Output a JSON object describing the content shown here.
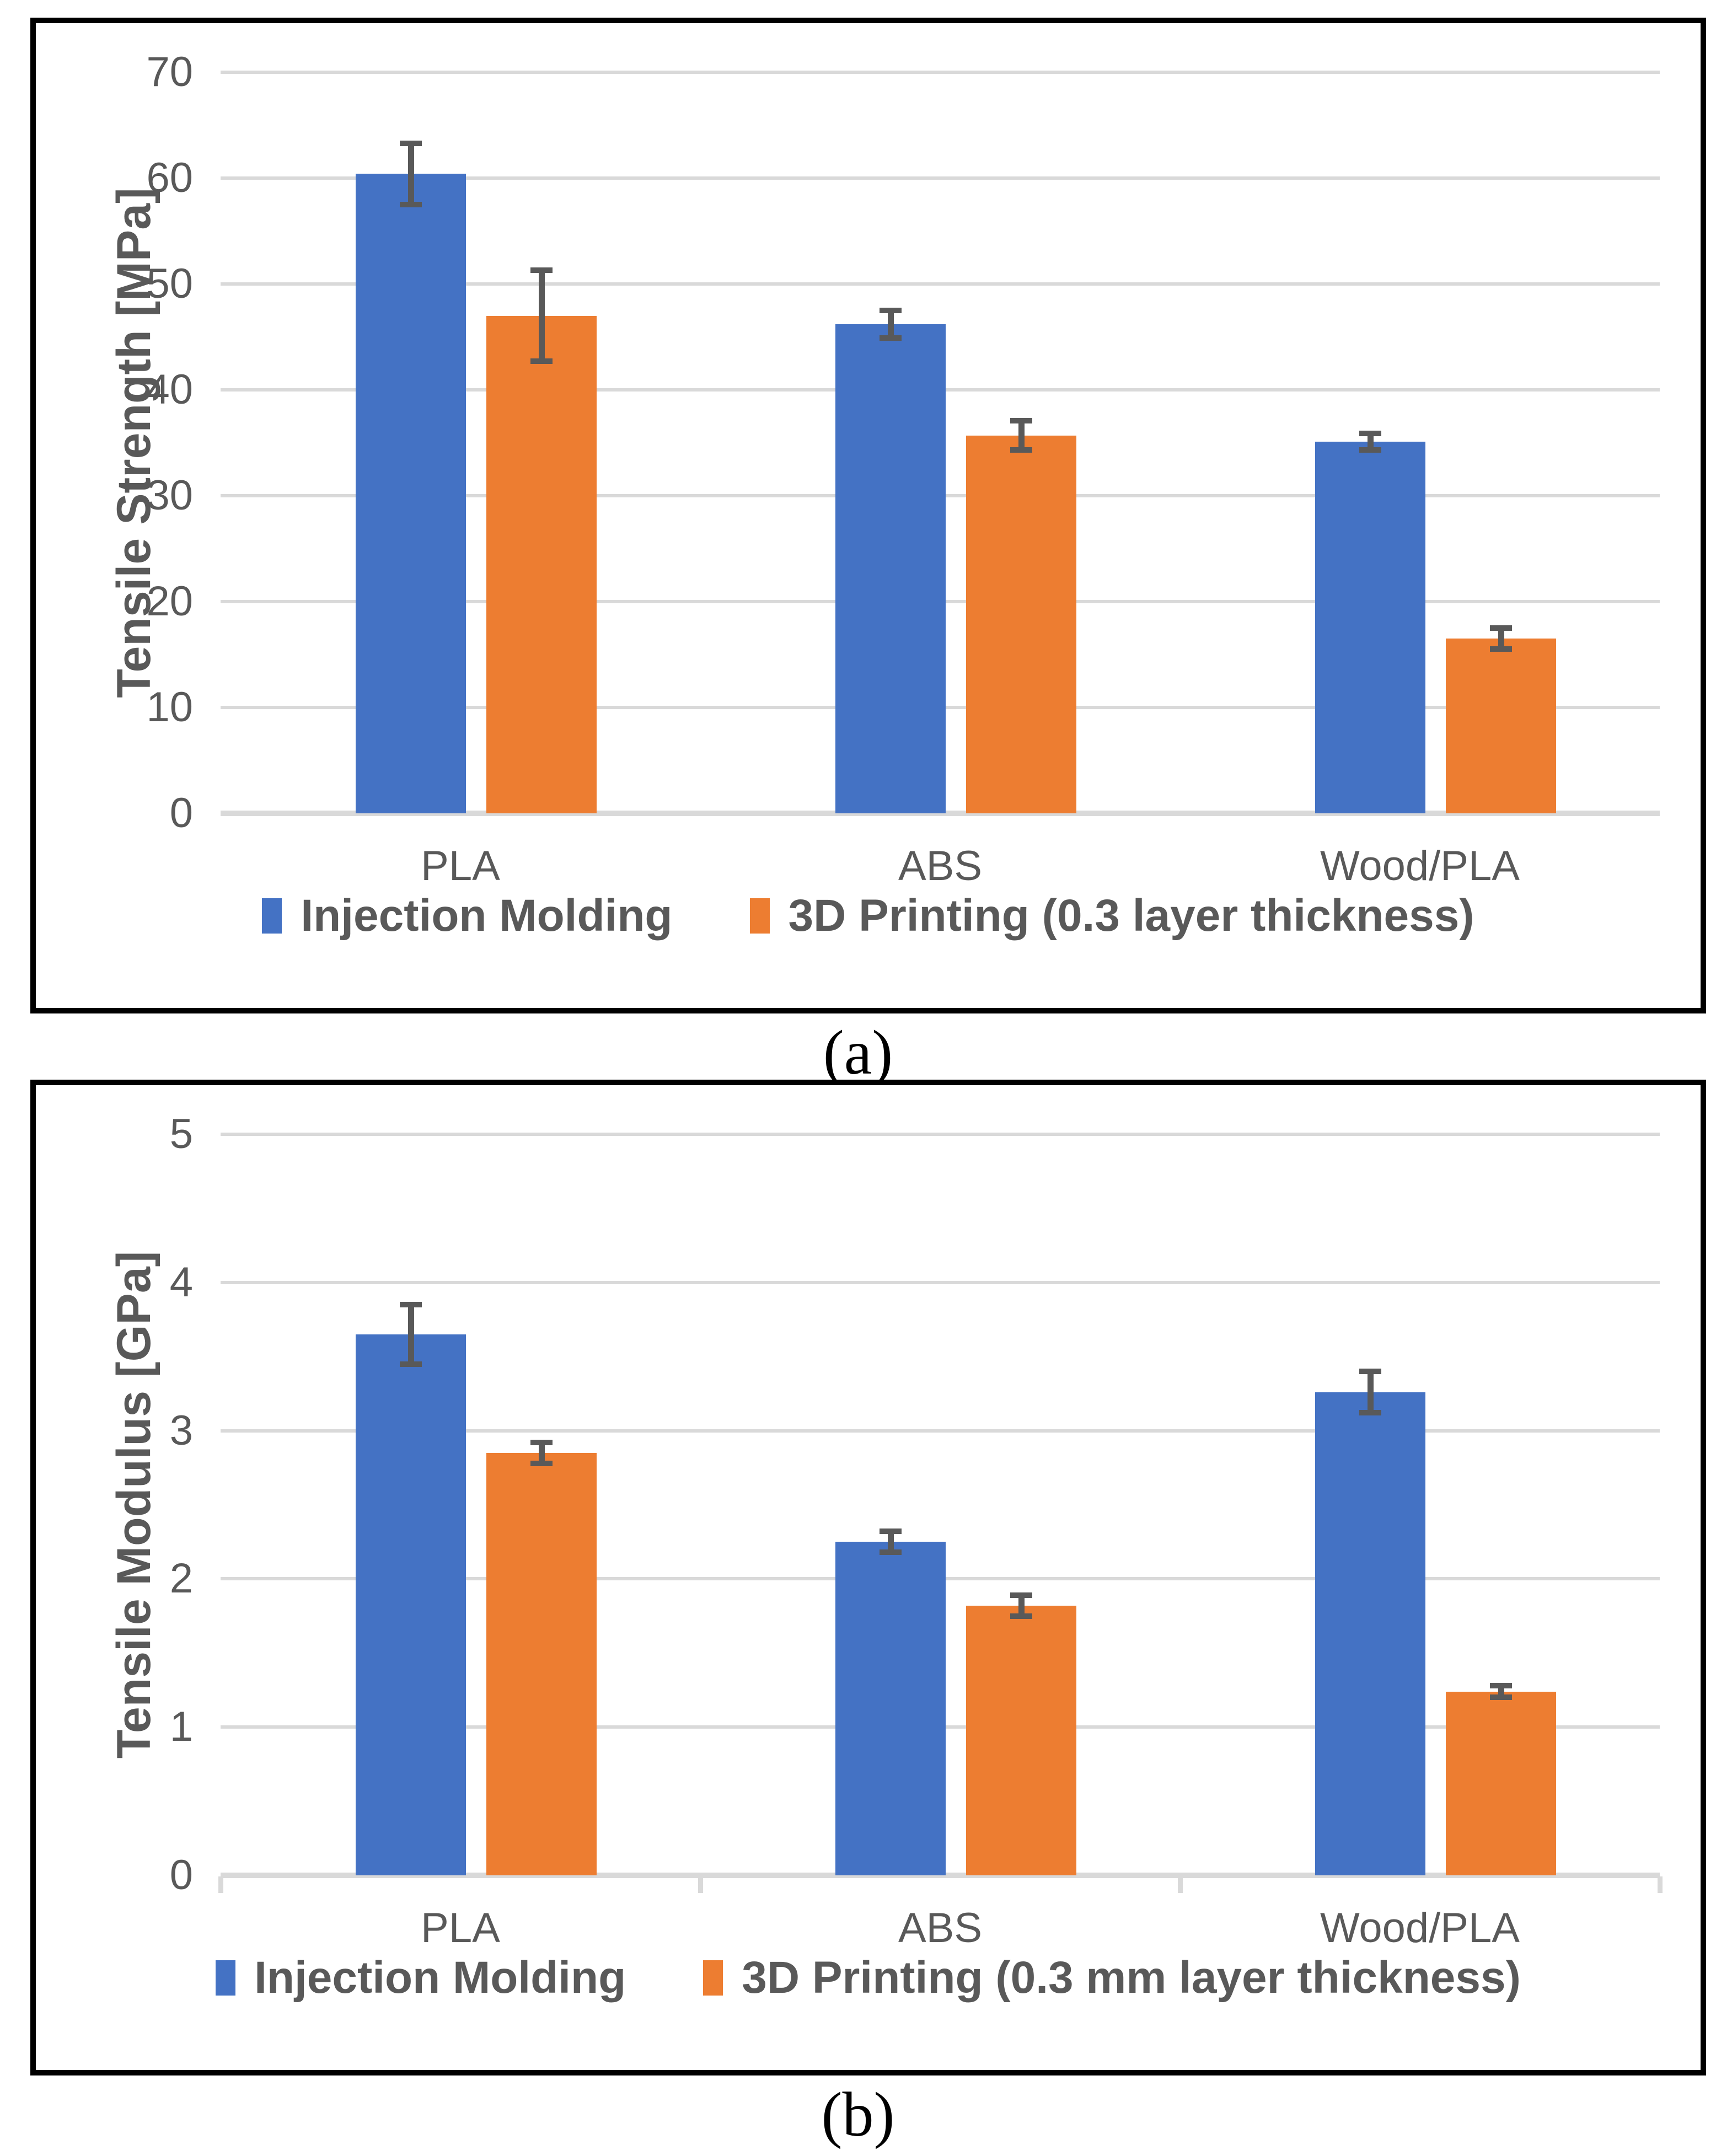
{
  "figure": {
    "caption_a": "(a)",
    "caption_b": "(b)"
  },
  "colors": {
    "series_blue": "#4472C4",
    "series_orange": "#ED7D31",
    "error_bar": "#595959",
    "gridline": "#D9D9D9",
    "axis_text": "#595959",
    "panel_border": "#000000"
  },
  "chart_data": [
    {
      "type": "bar",
      "panel": "a",
      "title": "",
      "xlabel": "",
      "ylabel": "Tensile Strength [MPa]",
      "ylim": [
        0,
        70
      ],
      "yticks": [
        0,
        10,
        20,
        30,
        40,
        50,
        60,
        70
      ],
      "grid": true,
      "legend_position": "bottom",
      "category_axis_ticks": false,
      "categories": [
        "PLA",
        "ABS",
        "Wood/PLA"
      ],
      "series": [
        {
          "name": "Injection Molding",
          "color": "#4472C4",
          "values": [
            60.4,
            46.2,
            35.1
          ],
          "errors": [
            2.9,
            1.3,
            0.8
          ]
        },
        {
          "name": "3D Printing (0.3 layer thickness)",
          "color": "#ED7D31",
          "values": [
            47.0,
            35.7,
            16.5
          ],
          "errors": [
            4.3,
            1.4,
            1.0
          ]
        }
      ]
    },
    {
      "type": "bar",
      "panel": "b",
      "title": "",
      "xlabel": "",
      "ylabel": "Tensile Modulus [GPa]",
      "ylim": [
        0,
        5
      ],
      "yticks": [
        0,
        1,
        2,
        3,
        4,
        5
      ],
      "grid": true,
      "legend_position": "bottom",
      "category_axis_ticks": true,
      "categories": [
        "PLA",
        "ABS",
        "Wood/PLA"
      ],
      "series": [
        {
          "name": "Injection Molding",
          "color": "#4472C4",
          "values": [
            3.65,
            2.25,
            3.26
          ],
          "errors": [
            0.2,
            0.07,
            0.14
          ]
        },
        {
          "name": "3D Printing (0.3 mm layer thickness)",
          "color": "#ED7D31",
          "values": [
            2.85,
            1.82,
            1.24
          ],
          "errors": [
            0.07,
            0.07,
            0.04
          ]
        }
      ]
    }
  ]
}
